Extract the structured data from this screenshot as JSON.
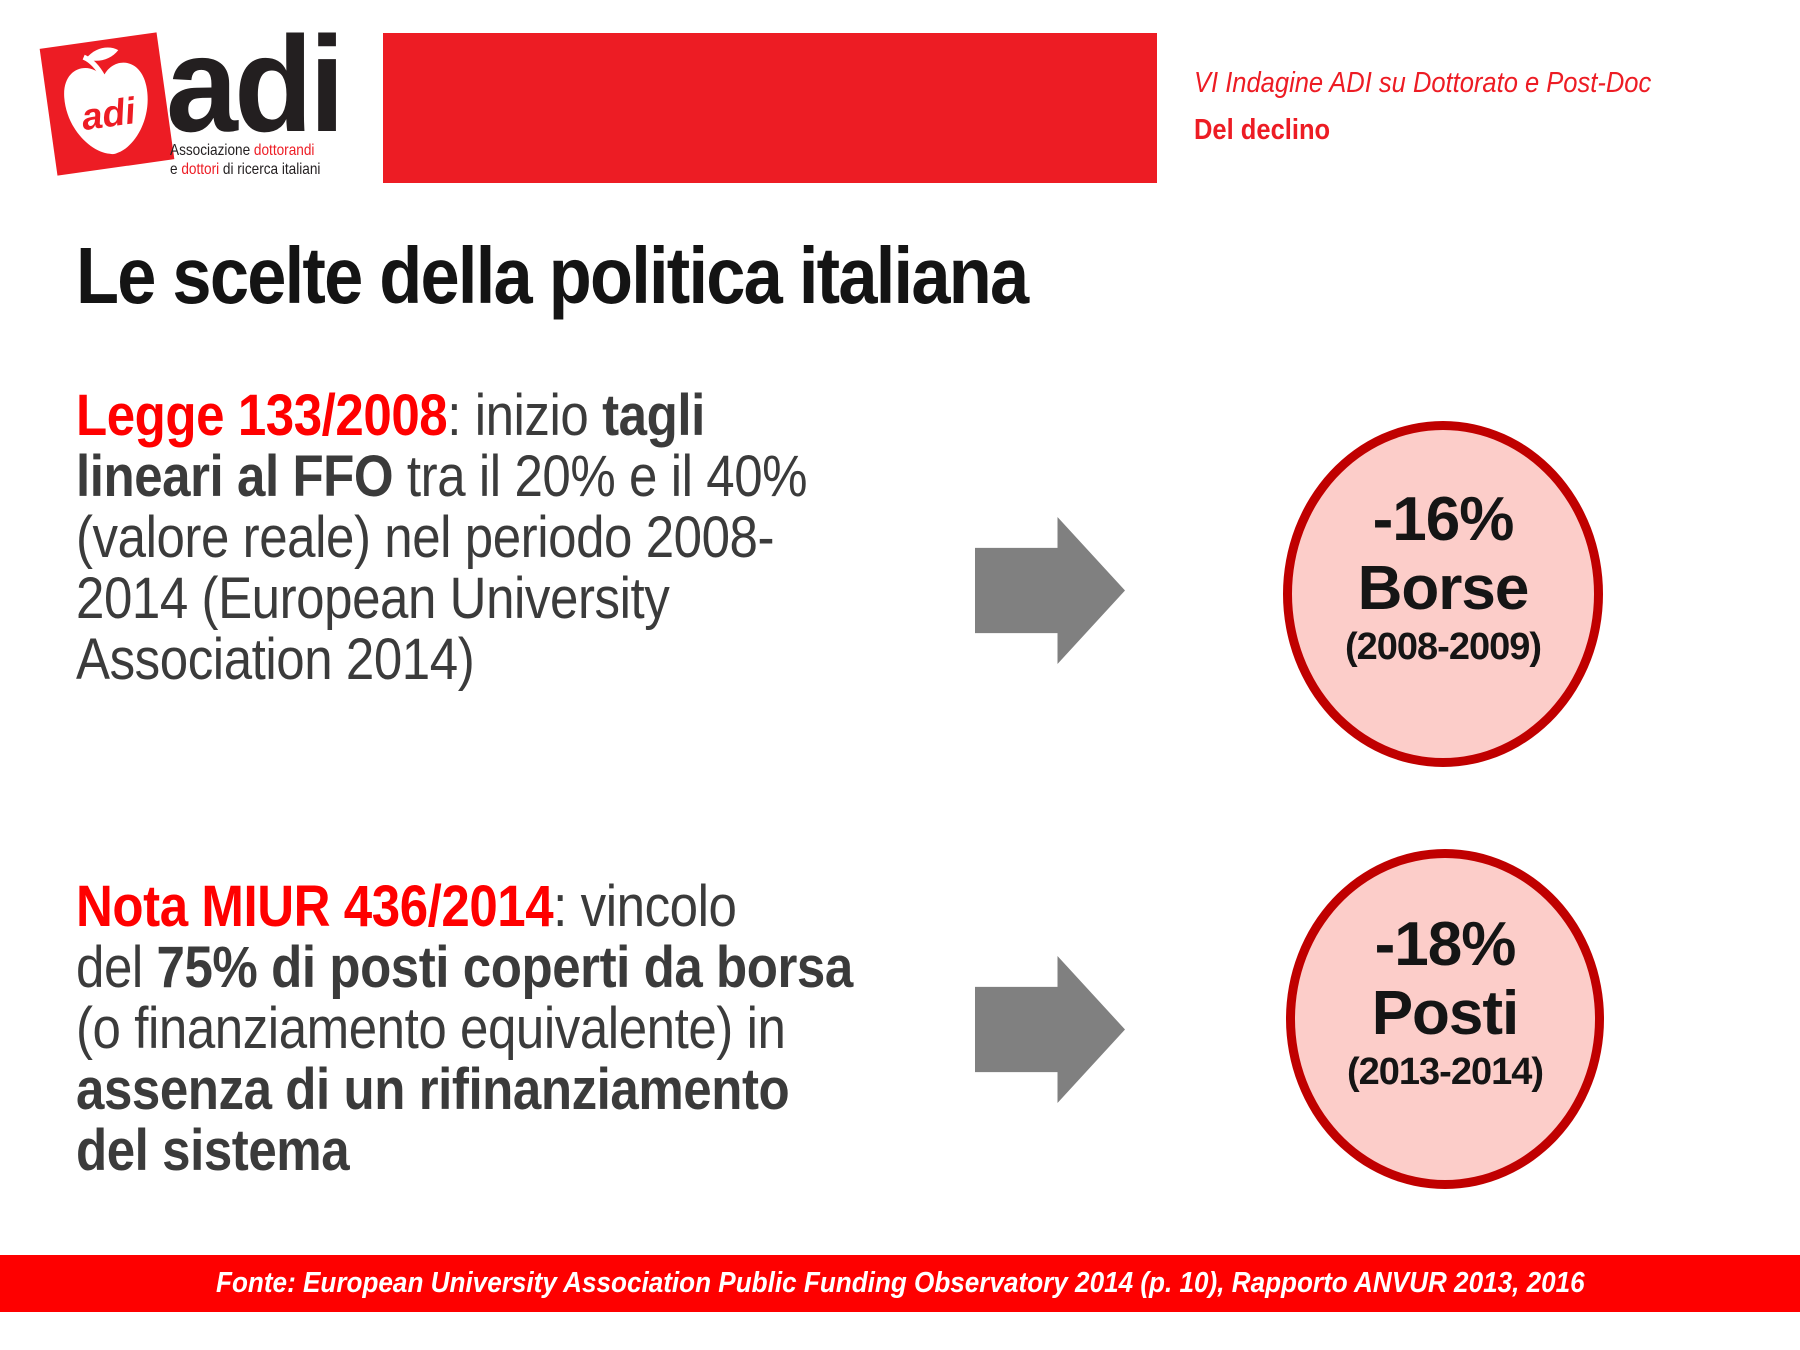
{
  "colors": {
    "brand-red": "#ed1c24",
    "text-red": "#ff0000",
    "footer-red": "#fe0000",
    "circle-fill": "#fccdc9",
    "circle-border": "#c00000",
    "arrow-gray": "#808080",
    "body-text": "#3b3b3b",
    "title-color": "#141414",
    "logo-text": "#231f20"
  },
  "header": {
    "logo": {
      "apple_text": "adi",
      "brand": "adi",
      "tagline_lines": [
        [
          {
            "t": "Associazione ",
            "s": ""
          },
          {
            "t": "dottorandi",
            "s": "r"
          }
        ],
        [
          {
            "t": "e ",
            "s": ""
          },
          {
            "t": "dottori",
            "s": "r"
          },
          {
            "t": " di ricerca italiani",
            "s": ""
          }
        ]
      ]
    },
    "right": {
      "line1": "VI Indagine ADI su Dottorato e Post-Doc",
      "line2": "Del declino"
    }
  },
  "title": "Le scelte della politica italiana",
  "rows": [
    {
      "paragraph_lines": [
        [
          {
            "t": "Legge 133/2008",
            "s": "rb"
          },
          {
            "t": ": inizio ",
            "s": ""
          },
          {
            "t": "tagli",
            "s": "b"
          }
        ],
        [
          {
            "t": "lineari al FFO",
            "s": "b"
          },
          {
            "t": " tra il 20% e il 40%",
            "s": ""
          }
        ],
        [
          {
            "t": "(valore reale) nel periodo 2008-",
            "s": ""
          }
        ],
        [
          {
            "t": "2014 (European University",
            "s": ""
          }
        ],
        [
          {
            "t": "Association 2014)",
            "s": ""
          }
        ]
      ],
      "circle": {
        "pct": "-16%",
        "label": "Borse",
        "range": "(2008-2009)"
      }
    },
    {
      "paragraph_lines": [
        [
          {
            "t": "Nota MIUR 436/2014",
            "s": "rb"
          },
          {
            "t": ": vincolo",
            "s": ""
          }
        ],
        [
          {
            "t": "del ",
            "s": ""
          },
          {
            "t": "75% di posti coperti da borsa",
            "s": "b"
          }
        ],
        [
          {
            "t": "(o finanziamento equivalente) in",
            "s": ""
          }
        ],
        [
          {
            "t": "assenza di un rifinanziamento",
            "s": "b"
          }
        ],
        [
          {
            "t": "del sistema",
            "s": "b"
          }
        ]
      ],
      "circle": {
        "pct": "-18%",
        "label": "Posti",
        "range": "(2013-2014)"
      }
    }
  ],
  "footer": {
    "source": "Fonte: European University Association Public Funding Observatory 2014 (p. 10), Rapporto ANVUR 2013, 2016"
  }
}
